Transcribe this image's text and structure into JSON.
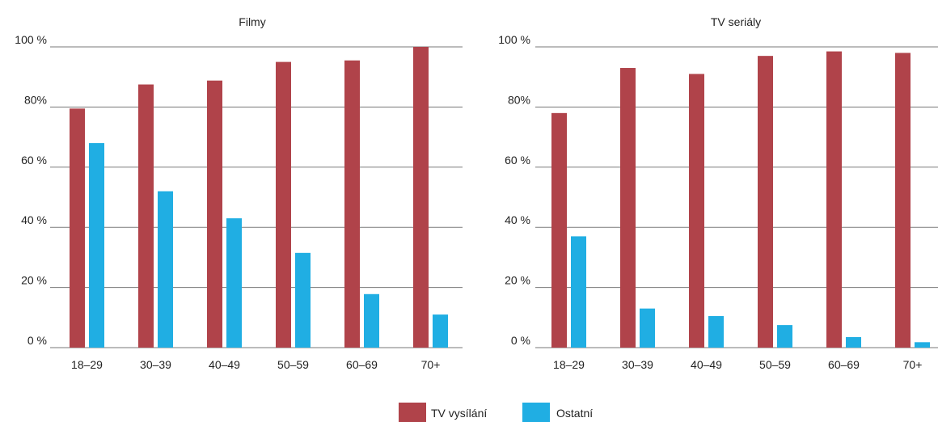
{
  "chart_data": [
    {
      "type": "bar",
      "title": "Filmy",
      "categories": [
        "18–29",
        "30–39",
        "40–49",
        "50–59",
        "60–69",
        "70+"
      ],
      "yticks": [
        "0 %",
        "20 %",
        "40 %",
        "60 %",
        "80%",
        "100 %"
      ],
      "ylim": [
        0,
        100
      ],
      "grid": true,
      "series": [
        {
          "name": "TV vysílání",
          "values": [
            79.5,
            87.5,
            88.8,
            95,
            95.5,
            100
          ]
        },
        {
          "name": "Ostatní",
          "values": [
            68,
            52,
            43,
            31.5,
            17.8,
            11
          ]
        }
      ]
    },
    {
      "type": "bar",
      "title": "TV seriály",
      "categories": [
        "18–29",
        "30–39",
        "40–49",
        "50–59",
        "60–69",
        "70+"
      ],
      "yticks": [
        "0 %",
        "20 %",
        "40 %",
        "60 %",
        "80%",
        "100 %"
      ],
      "ylim": [
        0,
        100
      ],
      "grid": true,
      "series": [
        {
          "name": "TV vysílání",
          "values": [
            78,
            93,
            91,
            97,
            98.5,
            98
          ]
        },
        {
          "name": "Ostatní",
          "values": [
            37,
            13,
            10.5,
            7.5,
            3.5,
            1.8
          ]
        }
      ]
    }
  ],
  "legend": {
    "placement": "bottom-center",
    "items": [
      {
        "label": "TV vysílání",
        "color": "#b0434a"
      },
      {
        "label": "Ostatní",
        "color": "#20aee3"
      }
    ]
  },
  "colors": {
    "series_1": "#b0434a",
    "series_2": "#20aee3",
    "grid": "#7a7a7a"
  }
}
